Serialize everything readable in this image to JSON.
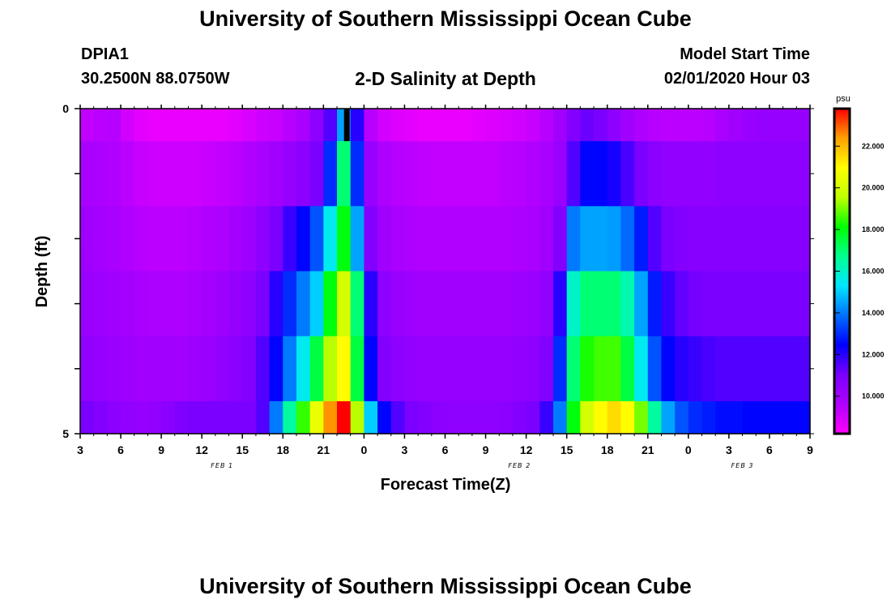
{
  "header": {
    "title": "University of Southern Mississippi Ocean Cube",
    "station_id": "DPIA1",
    "location": "30.2500N 88.0750W",
    "plot_title": "2-D Salinity at Depth",
    "model_start_label": "Model Start Time",
    "model_start_value": "02/01/2020 Hour 03"
  },
  "footer": {
    "title": "University of Southern Mississippi Ocean Cube"
  },
  "chart_data": {
    "type": "heatmap",
    "title": "2-D Salinity at Depth",
    "xlabel": "Forecast Time(Z)",
    "ylabel": "Depth (ft)",
    "x_ticks": [
      "3",
      "6",
      "9",
      "12",
      "15",
      "18",
      "21",
      "0",
      "3",
      "6",
      "9",
      "12",
      "15",
      "18",
      "21",
      "0",
      "3",
      "6",
      "9"
    ],
    "x_dates": [
      {
        "label": "FEB 1",
        "hour_index": 10.5
      },
      {
        "label": "FEB 2",
        "hour_index": 32.5
      },
      {
        "label": "FEB 3",
        "hour_index": 49
      }
    ],
    "y_ticks": [
      "0",
      "5"
    ],
    "ylim": [
      0,
      5
    ],
    "x_range_hours": [
      0,
      54
    ],
    "current_time_marker_hour": 19.7,
    "colorbar": {
      "unit": "psu",
      "range": [
        8.2,
        23.8
      ],
      "ticks": [
        "10.000",
        "12.000",
        "14.000",
        "16.000",
        "18.000",
        "20.000",
        "22.000"
      ],
      "tick_values": [
        10,
        12,
        14,
        16,
        18,
        20,
        22
      ],
      "colors": [
        "#ff00ff",
        "#b000ff",
        "#7a00ff",
        "#0000ff",
        "#0070ff",
        "#00e6ff",
        "#00ff90",
        "#00ff00",
        "#c0ff00",
        "#ffff00",
        "#ffa000",
        "#ff0000"
      ]
    },
    "depth_rows": [
      {
        "depth": "0-0.5",
        "salinity": [
          9.3,
          9.4,
          9.5,
          9.0,
          8.7,
          8.6,
          8.6,
          8.6,
          8.6,
          8.6,
          8.6,
          8.7,
          8.9,
          9.1,
          9.2,
          9.5,
          9.8,
          10.5,
          11.5,
          14.5,
          12.0,
          9.5,
          9.0,
          8.8,
          8.7,
          8.6,
          8.6,
          8.6,
          8.6,
          8.7,
          8.8,
          8.9,
          9.0,
          9.2,
          9.5,
          10.0,
          10.8,
          11.2,
          11.0,
          10.5,
          10.0,
          9.7,
          9.5,
          9.4,
          9.4,
          9.4,
          9.5,
          9.8,
          10.0,
          10.2,
          10.3,
          10.3,
          10.3,
          10.3
        ]
      },
      {
        "depth": "0.5-1.5",
        "salinity": [
          9.8,
          9.7,
          9.6,
          9.4,
          9.2,
          9.1,
          9.1,
          9.1,
          9.1,
          9.2,
          9.3,
          9.4,
          9.6,
          9.8,
          10.0,
          10.3,
          10.6,
          11.0,
          13.0,
          17.0,
          13.0,
          10.2,
          9.7,
          9.5,
          9.4,
          9.3,
          9.3,
          9.3,
          9.3,
          9.3,
          9.3,
          9.4,
          9.5,
          9.6,
          9.8,
          10.2,
          11.5,
          12.5,
          12.5,
          12.2,
          11.6,
          11.0,
          10.6,
          10.4,
          10.4,
          10.4,
          10.4,
          10.5,
          10.5,
          10.5,
          10.5,
          10.5,
          10.5,
          10.5
        ]
      },
      {
        "depth": "1.5-2.5",
        "salinity": [
          10.0,
          9.9,
          9.8,
          9.6,
          9.5,
          9.4,
          9.4,
          9.4,
          9.5,
          9.6,
          9.7,
          9.9,
          10.1,
          10.5,
          11.0,
          11.8,
          12.5,
          13.5,
          15.5,
          18.0,
          14.5,
          10.8,
          10.0,
          9.8,
          9.7,
          9.6,
          9.6,
          9.6,
          9.6,
          9.6,
          9.6,
          9.6,
          9.7,
          9.8,
          10.0,
          10.8,
          14.0,
          14.5,
          14.5,
          14.4,
          13.8,
          12.8,
          11.5,
          11.0,
          10.8,
          10.7,
          10.7,
          10.7,
          10.7,
          10.7,
          10.7,
          10.7,
          10.7,
          10.7
        ]
      },
      {
        "depth": "2.5-3.5",
        "salinity": [
          10.2,
          10.1,
          10.0,
          9.9,
          9.8,
          9.7,
          9.7,
          9.7,
          9.8,
          9.9,
          10.1,
          10.3,
          10.5,
          11.0,
          12.0,
          13.0,
          14.0,
          15.0,
          18.0,
          20.0,
          17.0,
          12.0,
          10.5,
          10.2,
          10.1,
          10.0,
          10.0,
          10.0,
          10.0,
          10.0,
          10.0,
          10.0,
          10.1,
          10.2,
          10.4,
          12.0,
          16.0,
          17.0,
          17.0,
          17.0,
          16.3,
          14.5,
          12.8,
          11.8,
          11.3,
          11.1,
          11.0,
          11.0,
          11.0,
          11.0,
          11.0,
          11.0,
          11.0,
          11.0
        ]
      },
      {
        "depth": "3.5-4.5",
        "salinity": [
          10.4,
          10.3,
          10.2,
          10.1,
          10.0,
          10.0,
          10.0,
          10.0,
          10.1,
          10.2,
          10.4,
          10.6,
          10.8,
          11.5,
          12.5,
          14.0,
          15.5,
          17.5,
          19.5,
          21.0,
          17.5,
          12.5,
          10.8,
          10.5,
          10.4,
          10.3,
          10.3,
          10.3,
          10.3,
          10.3,
          10.3,
          10.3,
          10.4,
          10.5,
          10.8,
          13.0,
          17.0,
          18.3,
          18.6,
          18.6,
          17.5,
          15.5,
          13.5,
          12.5,
          12.0,
          11.8,
          11.6,
          11.5,
          11.5,
          11.5,
          11.5,
          11.5,
          11.5,
          11.5
        ]
      },
      {
        "depth": "4.5-5",
        "salinity": [
          11.0,
          10.8,
          10.6,
          10.4,
          10.3,
          10.4,
          10.6,
          10.9,
          11.0,
          11.0,
          11.0,
          11.0,
          11.0,
          11.5,
          14.0,
          16.5,
          18.5,
          20.5,
          22.5,
          23.8,
          19.5,
          15.0,
          12.5,
          11.5,
          11.0,
          10.8,
          10.6,
          10.5,
          10.5,
          10.5,
          10.5,
          10.6,
          10.8,
          11.0,
          11.8,
          14.0,
          18.0,
          20.0,
          21.0,
          21.5,
          21.0,
          19.0,
          16.5,
          14.5,
          13.5,
          13.0,
          12.8,
          12.6,
          12.6,
          12.5,
          12.5,
          12.5,
          12.5,
          12.5
        ]
      }
    ]
  }
}
